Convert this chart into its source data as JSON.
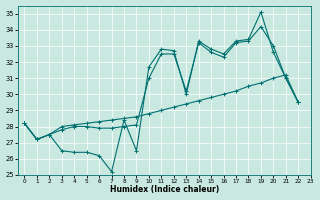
{
  "xlabel": "Humidex (Indice chaleur)",
  "xlim": [
    -0.5,
    23
  ],
  "ylim": [
    25,
    35.5
  ],
  "yticks": [
    25,
    26,
    27,
    28,
    29,
    30,
    31,
    32,
    33,
    34,
    35
  ],
  "xticks": [
    0,
    1,
    2,
    3,
    4,
    5,
    6,
    7,
    8,
    9,
    10,
    11,
    12,
    13,
    14,
    15,
    16,
    17,
    18,
    19,
    20,
    21,
    22,
    23
  ],
  "bg_color": "#c8e8e0",
  "line_color": "#007070",
  "grid_color": "#ffffff",
  "line1_x": [
    0,
    1,
    2,
    3,
    4,
    5,
    6,
    7,
    8,
    9,
    10,
    11,
    12,
    13,
    14,
    15,
    16,
    17,
    18,
    19,
    20,
    21,
    22
  ],
  "line1_y": [
    28.2,
    27.2,
    27.5,
    26.5,
    26.4,
    26.4,
    26.2,
    25.2,
    28.4,
    26.5,
    31.7,
    32.8,
    32.7,
    30.0,
    33.3,
    32.8,
    32.5,
    33.3,
    33.4,
    35.1,
    32.6,
    31.0,
    29.5
  ],
  "line2_x": [
    0,
    1,
    2,
    3,
    4,
    5,
    6,
    7,
    8,
    9,
    10,
    11,
    12,
    13,
    14,
    15,
    16,
    17,
    18,
    19,
    20,
    21,
    22
  ],
  "line2_y": [
    28.2,
    27.2,
    27.5,
    28.0,
    28.1,
    28.2,
    28.3,
    28.4,
    28.5,
    28.6,
    28.8,
    29.0,
    29.2,
    29.4,
    29.6,
    29.8,
    30.0,
    30.2,
    30.5,
    30.7,
    31.0,
    31.2,
    29.5
  ],
  "line3_x": [
    0,
    1,
    2,
    3,
    4,
    5,
    6,
    7,
    8,
    9,
    10,
    11,
    12,
    13,
    14,
    15,
    16,
    17,
    18,
    19,
    20,
    21,
    22
  ],
  "line3_y": [
    28.2,
    27.2,
    27.5,
    27.8,
    28.0,
    28.0,
    27.9,
    27.9,
    28.0,
    28.1,
    31.0,
    32.5,
    32.5,
    30.2,
    33.2,
    32.6,
    32.3,
    33.2,
    33.3,
    34.2,
    33.0,
    31.0,
    29.5
  ]
}
